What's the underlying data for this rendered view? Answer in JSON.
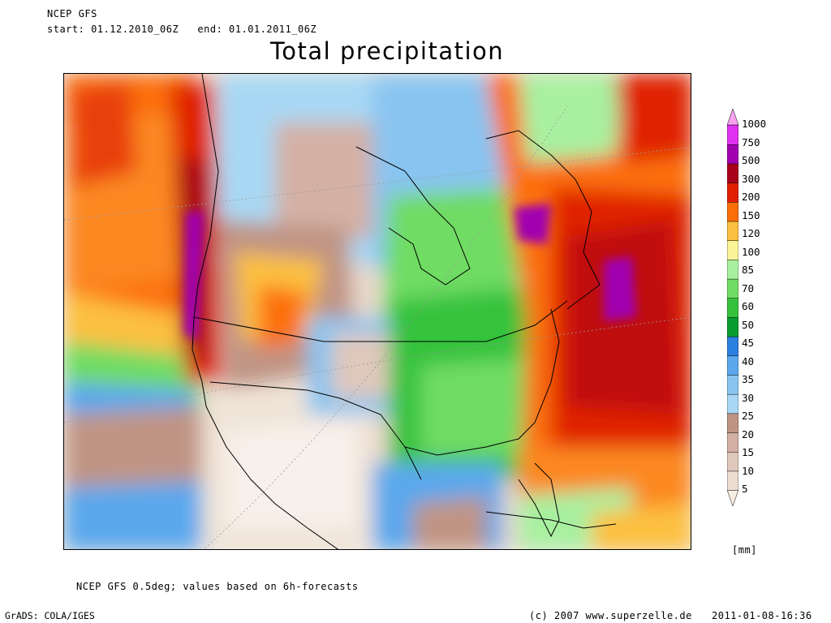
{
  "header": {
    "model": "NCEP GFS",
    "period": "start: 01.12.2010_06Z   end: 01.01.2011_06Z",
    "title": "Total precipitation"
  },
  "legend": {
    "unit": "[mm]",
    "levels": [
      "5",
      "10",
      "15",
      "20",
      "25",
      "30",
      "35",
      "40",
      "45",
      "50",
      "60",
      "70",
      "85",
      "100",
      "120",
      "150",
      "200",
      "300",
      "500",
      "750",
      "1000"
    ],
    "colors": [
      "#f6ece2",
      "#ecdcd2",
      "#e0c8bc",
      "#d4b0a4",
      "#c09484",
      "#a8d8f4",
      "#88c4f0",
      "#5ca8ec",
      "#2c80e0",
      "#089c30",
      "#36c23c",
      "#70dc64",
      "#a8f0a0",
      "#fcf498",
      "#fcc040",
      "#fc7008",
      "#e02000",
      "#a80018",
      "#a000b0",
      "#e030f0",
      "#f8a0f0"
    ]
  },
  "footer": {
    "note": "NCEP GFS 0.5deg; values based on 6h-forecasts",
    "software": "GrADS: COLA/IGES",
    "copyright": "(c) 2007 www.superzelle.de",
    "timestamp": "2011-01-08-16:36"
  }
}
